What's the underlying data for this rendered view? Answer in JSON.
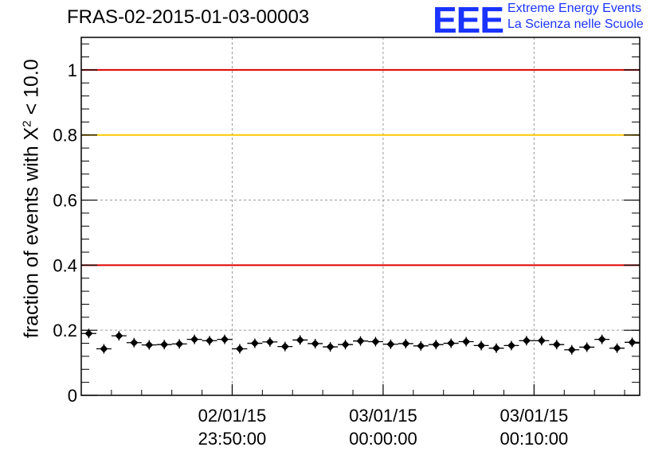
{
  "title": "FRAS-02-2015-01-03-00003",
  "logo": {
    "mark": "EEE",
    "line1": "Extreme Energy Events",
    "line2": "La Scienza nelle Scuole"
  },
  "ylabel": {
    "prefix": "fraction of events with ",
    "symbol": "X",
    "exponent": "2",
    "suffix": " < 10.0"
  },
  "chart_data": {
    "type": "scatter",
    "ylim": [
      0,
      1.1
    ],
    "yticks": [
      {
        "value": 0,
        "label": "0"
      },
      {
        "value": 0.2,
        "label": "0.2"
      },
      {
        "value": 0.4,
        "label": "0.4"
      },
      {
        "value": 0.6,
        "label": "0.6"
      },
      {
        "value": 0.8,
        "label": "0.8"
      },
      {
        "value": 1,
        "label": "1"
      }
    ],
    "xticks": [
      {
        "position": 10,
        "date": "02/01/15",
        "time": "23:50:00"
      },
      {
        "position": 20,
        "date": "03/01/15",
        "time": "00:00:00"
      },
      {
        "position": 30,
        "date": "03/01/15",
        "time": "00:10:00"
      }
    ],
    "xlim": [
      0,
      37
    ],
    "grid": true,
    "reference_lines": [
      {
        "value": 1.0,
        "color": "#e00000"
      },
      {
        "value": 0.8,
        "color": "#ffc800"
      },
      {
        "value": 0.4,
        "color": "#e00000"
      }
    ],
    "series": [
      {
        "color": "#000000",
        "x": [
          0.5,
          1.5,
          2.5,
          3.5,
          4.5,
          5.5,
          6.5,
          7.5,
          8.5,
          9.5,
          10.5,
          11.5,
          12.5,
          13.5,
          14.5,
          15.5,
          16.5,
          17.5,
          18.5,
          19.5,
          20.5,
          21.5,
          22.5,
          23.5,
          24.5,
          25.5,
          26.5,
          27.5,
          28.5,
          29.5,
          30.5,
          31.5,
          32.5,
          33.5,
          34.5,
          35.5,
          36.5
        ],
        "y": [
          0.19,
          0.143,
          0.183,
          0.162,
          0.155,
          0.156,
          0.158,
          0.172,
          0.168,
          0.172,
          0.143,
          0.16,
          0.164,
          0.15,
          0.17,
          0.159,
          0.149,
          0.156,
          0.167,
          0.165,
          0.157,
          0.159,
          0.152,
          0.156,
          0.16,
          0.165,
          0.153,
          0.145,
          0.153,
          0.168,
          0.168,
          0.156,
          0.14,
          0.148,
          0.172,
          0.145,
          0.163
        ]
      }
    ]
  }
}
